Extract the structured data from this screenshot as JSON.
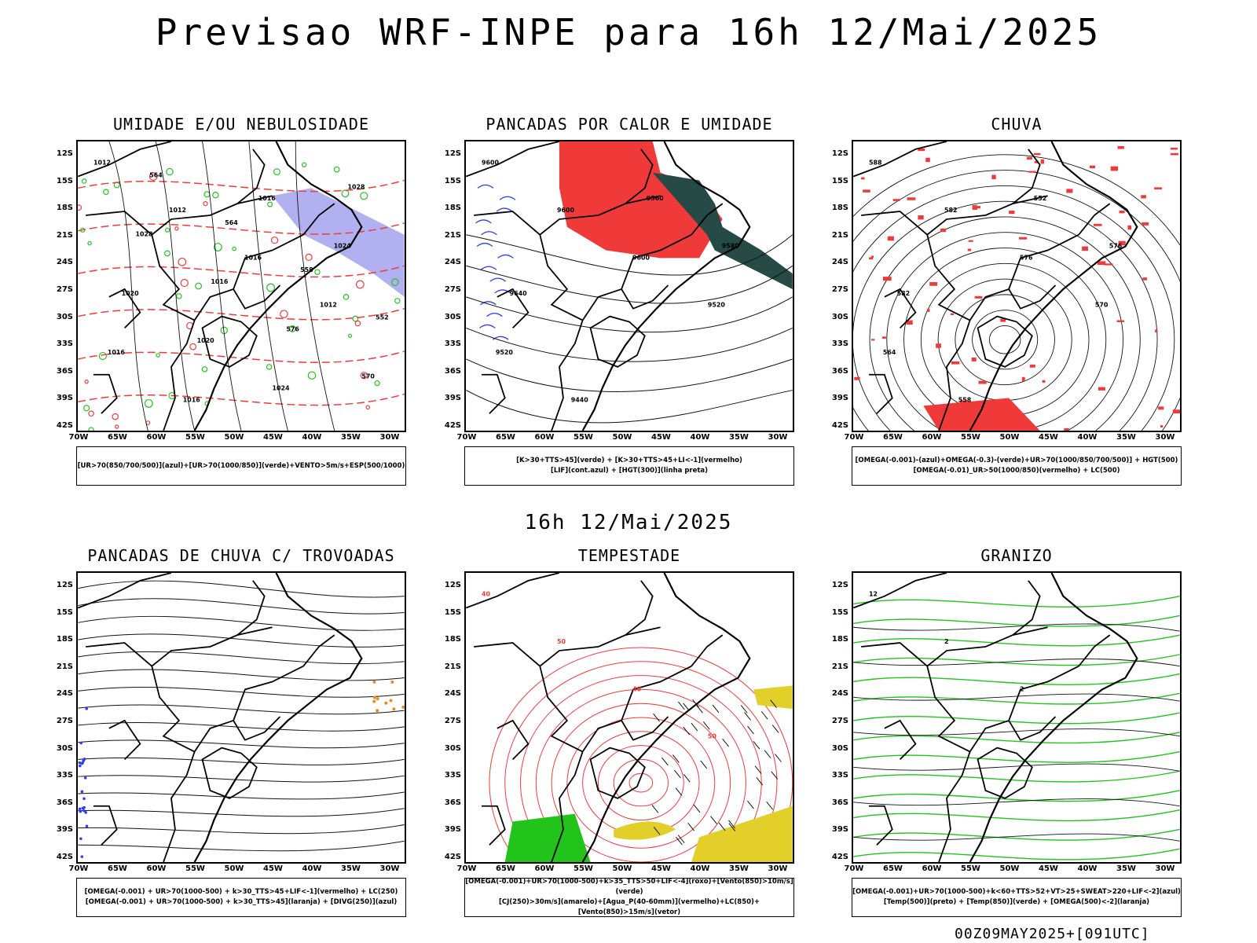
{
  "title": "Previsao WRF-INPE  para 16h 12/Mai/2025",
  "mid_time": "16h 12/Mai/2025",
  "run_stamp": "00Z09MAY2025+[091UTC]",
  "lat_labels": [
    "12S",
    "15S",
    "18S",
    "21S",
    "24S",
    "27S",
    "30S",
    "33S",
    "36S",
    "39S",
    "42S"
  ],
  "lon_labels": [
    "70W",
    "65W",
    "60W",
    "55W",
    "50W",
    "45W",
    "40W",
    "35W",
    "30W"
  ],
  "colors": {
    "red": "#f03a3a",
    "green": "#22c41c",
    "blue": "#2c3cf0",
    "lavender": "#a3a3f0",
    "darkteal": "#264a46",
    "yellow": "#e3cf2a",
    "orange": "#e88a1e"
  },
  "panels": [
    {
      "id": "umidade",
      "title": "UMIDADE E/OU NEBULOSIDADE",
      "legend": [
        "[UR>70(850/700/500)](azul)+[UR>70(1000/850)](verde)+VENTO>5m/s+ESP(500/1000)"
      ],
      "labels": [
        "1012",
        "1012",
        "1016",
        "1012",
        "1016",
        "1016",
        "1016",
        "1024",
        "1020",
        "1020",
        "1024",
        "1028",
        "1028",
        "1016",
        "576",
        "570",
        "564",
        "564",
        "558",
        "552"
      ]
    },
    {
      "id": "pancadas-calor",
      "title": "PANCADAS POR CALOR E UMIDADE",
      "legend": [
        "[K>30+TTS>45](verde) + [K>30+TTS>45+LI<-1](vermelho)",
        "[LIF](cont.azul) + [HGT(300)](linha preta)"
      ],
      "labels": [
        "9600",
        "9600",
        "9600",
        "9520",
        "9520",
        "9440",
        "9560",
        "9580",
        "9640"
      ]
    },
    {
      "id": "chuva",
      "title": "CHUVA",
      "legend": [
        "[OMEGA(-0.001)-(azul)+OMEGA(-0.3)-(verde)+UR>70(1000/850/700/500)] + HGT(500)",
        "[OMEGA(-0.01)_UR>50(1000/850)(vermelho) + LC(500)"
      ],
      "labels": [
        "588",
        "582",
        "576",
        "570",
        "564",
        "558",
        "552",
        "576",
        "582"
      ]
    },
    {
      "id": "pancadas-trovoadas",
      "title": "PANCADAS DE CHUVA C/ TROVOADAS",
      "legend": [
        "[OMEGA(-0.001) + UR>70(1000-500) + k>30_TTS>45+LIF<-1](vermelho) + LC(250)",
        "[OMEGA(-0.001) + UR>70(1000-500) + k>30_TTS>45](laranja) + [DIVG(250)](azul)"
      ],
      "labels": []
    },
    {
      "id": "tempestade",
      "title": "TEMPESTADE",
      "legend": [
        "[OMEGA(-0.001)+UR>70(1000-500)+k>35_TTS>50+LIF<-4](roxo)+[Vento(850)>10m/s](verde)",
        "[CJ(250)>30m/s](amarelo)+[Agua_P(40-60mm)](vermelho)+LC(850)+[Vento(850)>15m/s](vetor)"
      ],
      "labels": [
        "40",
        "50",
        "40",
        "50"
      ]
    },
    {
      "id": "granizo",
      "title": "GRANIZO",
      "legend": [
        "[OMEGA(-0.001)+UR>70(1000-500)+k<60+TTS>52+VT>25+SWEAT>220+LIF<-2](azul)",
        "[Temp(500)](preto) + [Temp(850)](verde) + [OMEGA(500)<-2](laranja)"
      ],
      "labels": [
        "12",
        "2",
        "2"
      ]
    }
  ]
}
